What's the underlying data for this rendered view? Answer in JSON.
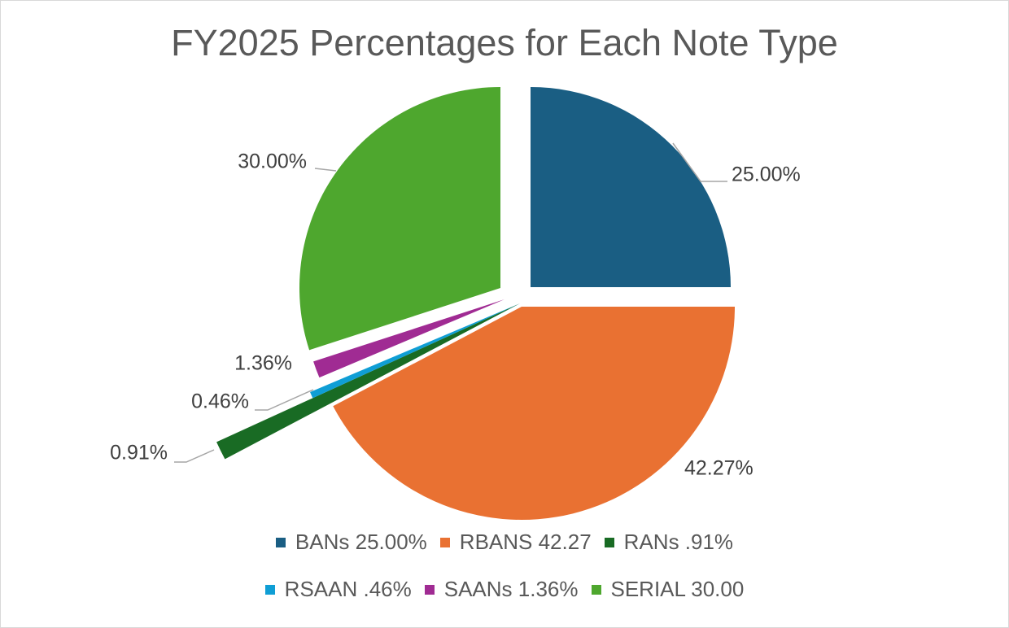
{
  "chart_data": {
    "type": "pie",
    "title": "FY2025 Percentages for Each Note Type",
    "slices": [
      {
        "legend": "BANs 25.00%",
        "value": 25.0,
        "label": "25.00%",
        "color": "#1a5e83"
      },
      {
        "legend": "RBANS 42.27",
        "value": 42.27,
        "label": "42.27%",
        "color": "#e97132"
      },
      {
        "legend": "RANs .91%",
        "value": 0.91,
        "label": "0.91%",
        "color": "#196b24"
      },
      {
        "legend": "RSAAN .46%",
        "value": 0.46,
        "label": "0.46%",
        "color": "#0f9ed5"
      },
      {
        "legend": "SAANs 1.36%",
        "value": 1.36,
        "label": "1.36%",
        "color": "#a02b93"
      },
      {
        "legend": "SERIAL 30.00",
        "value": 30.0,
        "label": "30.00%",
        "color": "#4ea72e"
      }
    ],
    "legend_position": "bottom",
    "exploded": true
  }
}
